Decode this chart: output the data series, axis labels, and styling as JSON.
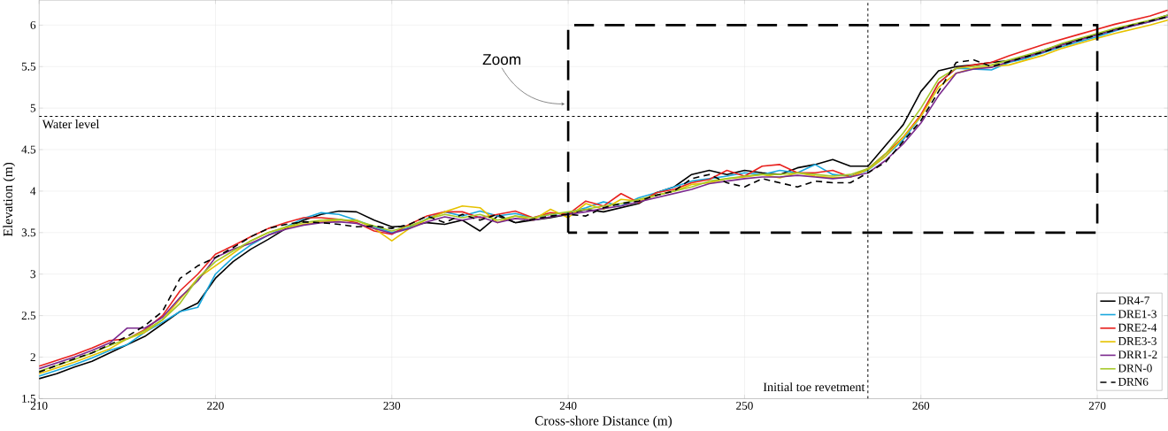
{
  "chart_data": {
    "type": "line",
    "xlabel": "Cross-shore Distance (m)",
    "ylabel": "Elevation (m)",
    "x": [
      210,
      211,
      212,
      213,
      214,
      215,
      216,
      217,
      218,
      219,
      220,
      221,
      222,
      223,
      224,
      225,
      226,
      227,
      228,
      229,
      230,
      231,
      232,
      233,
      234,
      235,
      236,
      237,
      238,
      239,
      240,
      241,
      242,
      243,
      244,
      245,
      246,
      247,
      248,
      249,
      250,
      251,
      252,
      253,
      254,
      255,
      256,
      257,
      258,
      259,
      260,
      261,
      262,
      263,
      264,
      265,
      266,
      267,
      268,
      269,
      270,
      271,
      272,
      273,
      274
    ],
    "series": [
      {
        "name": "DR4-7",
        "color": "#000000",
        "values": [
          1.74,
          1.8,
          1.88,
          1.95,
          2.05,
          2.15,
          2.25,
          2.4,
          2.55,
          2.65,
          2.95,
          3.15,
          3.3,
          3.42,
          3.55,
          3.65,
          3.72,
          3.76,
          3.75,
          3.65,
          3.57,
          3.58,
          3.62,
          3.6,
          3.65,
          3.52,
          3.7,
          3.62,
          3.65,
          3.68,
          3.72,
          3.78,
          3.75,
          3.8,
          3.85,
          3.98,
          4.05,
          4.2,
          4.25,
          4.2,
          4.25,
          4.22,
          4.2,
          4.28,
          4.32,
          4.38,
          4.3,
          4.3,
          4.55,
          4.8,
          5.2,
          5.45,
          5.5,
          5.52,
          5.55,
          5.57,
          5.63,
          5.7,
          5.77,
          5.83,
          5.89,
          5.95,
          6.0,
          6.05,
          6.12
        ]
      },
      {
        "name": "DRE1-3",
        "color": "#1aa7dd",
        "values": [
          1.77,
          1.84,
          1.91,
          1.99,
          2.08,
          2.15,
          2.3,
          2.42,
          2.55,
          2.6,
          3.0,
          3.2,
          3.35,
          3.47,
          3.57,
          3.67,
          3.74,
          3.72,
          3.65,
          3.57,
          3.5,
          3.56,
          3.67,
          3.75,
          3.7,
          3.76,
          3.7,
          3.73,
          3.68,
          3.72,
          3.74,
          3.8,
          3.87,
          3.82,
          3.92,
          3.98,
          4.05,
          4.12,
          4.15,
          4.18,
          4.22,
          4.2,
          4.25,
          4.22,
          4.32,
          4.2,
          4.18,
          4.25,
          4.42,
          4.62,
          4.9,
          5.3,
          5.48,
          5.47,
          5.46,
          5.55,
          5.6,
          5.67,
          5.74,
          5.8,
          5.86,
          5.93,
          5.99,
          6.04,
          6.1
        ]
      },
      {
        "name": "DRE2-4",
        "color": "#e8221f",
        "values": [
          1.89,
          1.96,
          2.03,
          2.11,
          2.2,
          2.22,
          2.33,
          2.5,
          2.8,
          3.0,
          3.24,
          3.34,
          3.45,
          3.55,
          3.62,
          3.68,
          3.68,
          3.66,
          3.62,
          3.52,
          3.48,
          3.6,
          3.7,
          3.75,
          3.75,
          3.68,
          3.72,
          3.76,
          3.68,
          3.74,
          3.72,
          3.88,
          3.82,
          3.97,
          3.86,
          3.98,
          4.02,
          4.1,
          4.14,
          4.25,
          4.18,
          4.3,
          4.32,
          4.22,
          4.22,
          4.25,
          4.17,
          4.27,
          4.45,
          4.65,
          4.92,
          5.3,
          5.48,
          5.52,
          5.55,
          5.63,
          5.7,
          5.77,
          5.83,
          5.89,
          5.95,
          6.01,
          6.06,
          6.11,
          6.18
        ]
      },
      {
        "name": "DRE3-3",
        "color": "#e6c200",
        "values": [
          1.8,
          1.87,
          1.94,
          2.02,
          2.1,
          2.22,
          2.3,
          2.45,
          2.7,
          2.95,
          3.1,
          3.25,
          3.4,
          3.5,
          3.56,
          3.6,
          3.63,
          3.65,
          3.65,
          3.55,
          3.4,
          3.55,
          3.66,
          3.75,
          3.82,
          3.8,
          3.62,
          3.7,
          3.65,
          3.78,
          3.68,
          3.85,
          3.78,
          3.9,
          3.88,
          3.95,
          4.0,
          4.08,
          4.1,
          4.15,
          4.17,
          4.2,
          4.16,
          4.22,
          4.18,
          4.16,
          4.17,
          4.26,
          4.42,
          4.65,
          4.9,
          5.25,
          5.42,
          5.48,
          5.5,
          5.52,
          5.58,
          5.64,
          5.72,
          5.78,
          5.84,
          5.9,
          5.95,
          6.0,
          6.06
        ]
      },
      {
        "name": "DRR1-2",
        "color": "#7b2a8e",
        "values": [
          1.86,
          1.93,
          2.0,
          2.08,
          2.17,
          2.35,
          2.35,
          2.48,
          2.72,
          2.92,
          3.2,
          3.3,
          3.37,
          3.47,
          3.54,
          3.59,
          3.62,
          3.63,
          3.61,
          3.55,
          3.49,
          3.55,
          3.63,
          3.69,
          3.65,
          3.69,
          3.62,
          3.67,
          3.65,
          3.69,
          3.72,
          3.75,
          3.79,
          3.82,
          3.87,
          3.92,
          3.97,
          4.02,
          4.09,
          4.12,
          4.15,
          4.17,
          4.17,
          4.19,
          4.17,
          4.15,
          4.17,
          4.22,
          4.37,
          4.57,
          4.82,
          5.15,
          5.42,
          5.47,
          5.49,
          5.56,
          5.62,
          5.68,
          5.76,
          5.82,
          5.88,
          5.94,
          5.99,
          6.04,
          6.1
        ]
      },
      {
        "name": "DRN-0",
        "color": "#a5c828",
        "values": [
          1.83,
          1.9,
          1.97,
          2.05,
          2.14,
          2.22,
          2.32,
          2.45,
          2.65,
          2.95,
          3.15,
          3.28,
          3.4,
          3.5,
          3.57,
          3.62,
          3.65,
          3.66,
          3.64,
          3.58,
          3.52,
          3.58,
          3.66,
          3.72,
          3.68,
          3.72,
          3.65,
          3.7,
          3.68,
          3.72,
          3.75,
          3.78,
          3.82,
          3.85,
          3.9,
          3.95,
          4.0,
          4.05,
          4.12,
          4.15,
          4.18,
          4.2,
          4.2,
          4.22,
          4.2,
          4.18,
          4.2,
          4.27,
          4.45,
          4.7,
          5.0,
          5.35,
          5.48,
          5.5,
          5.52,
          5.58,
          5.64,
          5.7,
          5.78,
          5.84,
          5.9,
          5.96,
          6.01,
          6.06,
          6.12
        ]
      },
      {
        "name": "DRN6",
        "color": "#000000",
        "line_style": "dashed",
        "values": [
          1.82,
          1.9,
          1.98,
          2.05,
          2.15,
          2.25,
          2.38,
          2.55,
          2.95,
          3.1,
          3.2,
          3.32,
          3.45,
          3.55,
          3.6,
          3.63,
          3.62,
          3.6,
          3.57,
          3.58,
          3.55,
          3.6,
          3.7,
          3.62,
          3.72,
          3.65,
          3.72,
          3.62,
          3.66,
          3.7,
          3.72,
          3.7,
          3.8,
          3.85,
          3.88,
          3.95,
          4.0,
          4.15,
          4.2,
          4.1,
          4.05,
          4.15,
          4.1,
          4.05,
          4.12,
          4.1,
          4.1,
          4.22,
          4.35,
          4.6,
          4.85,
          5.2,
          5.55,
          5.58,
          5.5,
          5.56,
          5.62,
          5.68,
          5.75,
          5.82,
          5.88,
          5.94,
          6.0,
          6.05,
          6.1
        ]
      }
    ],
    "xlim": [
      210,
      274
    ],
    "ylim": [
      1.5,
      6.3
    ],
    "xticks": [
      210,
      220,
      230,
      240,
      250,
      260,
      270
    ],
    "yticks": [
      1.5,
      2,
      2.5,
      3,
      3.5,
      4,
      4.5,
      5,
      5.5,
      6
    ],
    "grid": true,
    "legend": "bottom right",
    "ref_lines": [
      {
        "axis": "y",
        "value": 4.9,
        "label": "Water level",
        "line_style": "dashed"
      },
      {
        "axis": "x",
        "value": 257,
        "label": "Initial toe revetment",
        "line_style": "dashed"
      }
    ],
    "annotations": [
      "Zoom"
    ]
  }
}
